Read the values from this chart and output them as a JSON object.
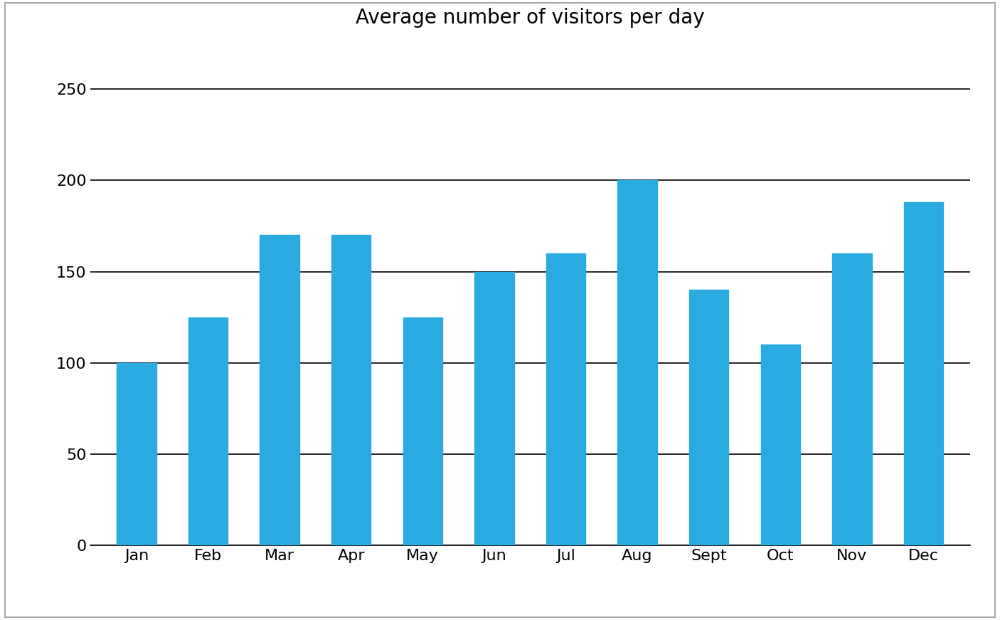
{
  "categories": [
    "Jan",
    "Feb",
    "Mar",
    "Apr",
    "May",
    "Jun",
    "Jul",
    "Aug",
    "Sept",
    "Oct",
    "Nov",
    "Dec"
  ],
  "values": [
    100,
    125,
    170,
    170,
    125,
    150,
    160,
    200,
    140,
    110,
    160,
    188
  ],
  "bar_color": "#29ABE2",
  "title": "Average number of visitors per day",
  "title_fontsize": 20,
  "ylim": [
    0,
    275
  ],
  "yticks": [
    0,
    50,
    100,
    150,
    200,
    250
  ],
  "tick_fontsize": 16,
  "background_color": "#ffffff",
  "border_color": "#000000",
  "grid_color": "#000000",
  "bar_width": 0.55
}
